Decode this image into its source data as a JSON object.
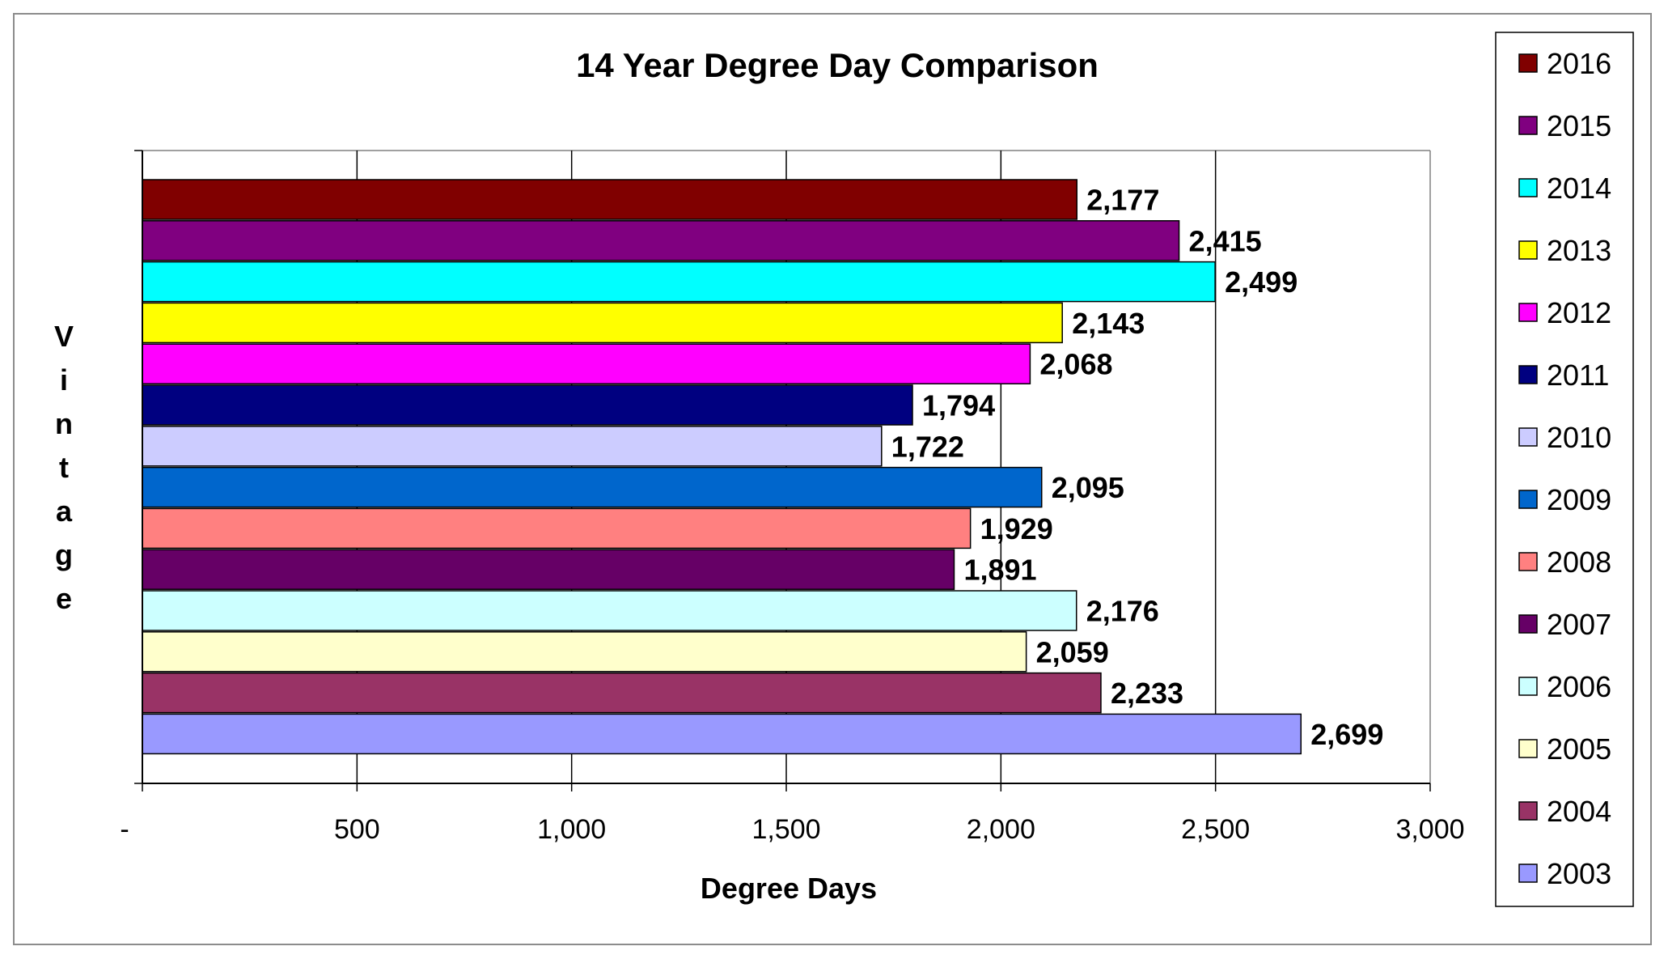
{
  "chart_data": {
    "type": "bar",
    "orientation": "horizontal",
    "title": "14 Year Degree Day Comparison",
    "xlabel": "Degree Days",
    "ylabel": "Vintage",
    "xlim": [
      0,
      3000
    ],
    "x_ticks": [
      0,
      500,
      1000,
      1500,
      2000,
      2500,
      3000
    ],
    "x_tick_labels": [
      "-",
      "500",
      "1,000",
      "1,500",
      "2,000",
      "2,500",
      "3,000"
    ],
    "grid": "vertical major gridlines",
    "legend_position": "right",
    "series": [
      {
        "name": "2016",
        "value": 2177,
        "label": "2,177",
        "color": "#800000"
      },
      {
        "name": "2015",
        "value": 2415,
        "label": "2,415",
        "color": "#800080"
      },
      {
        "name": "2014",
        "value": 2499,
        "label": "2,499",
        "color": "#00FFFF"
      },
      {
        "name": "2013",
        "value": 2143,
        "label": "2,143",
        "color": "#FFFF00"
      },
      {
        "name": "2012",
        "value": 2068,
        "label": "2,068",
        "color": "#FF00FF"
      },
      {
        "name": "2011",
        "value": 1794,
        "label": "1,794",
        "color": "#000080"
      },
      {
        "name": "2010",
        "value": 1722,
        "label": "1,722",
        "color": "#CCCCFF"
      },
      {
        "name": "2009",
        "value": 2095,
        "label": "2,095",
        "color": "#0066CC"
      },
      {
        "name": "2008",
        "value": 1929,
        "label": "1,929",
        "color": "#FF8080"
      },
      {
        "name": "2007",
        "value": 1891,
        "label": "1,891",
        "color": "#660066"
      },
      {
        "name": "2006",
        "value": 2176,
        "label": "2,176",
        "color": "#CCFFFF"
      },
      {
        "name": "2005",
        "value": 2059,
        "label": "2,059",
        "color": "#FFFFCC"
      },
      {
        "name": "2004",
        "value": 2233,
        "label": "2,233",
        "color": "#993366"
      },
      {
        "name": "2003",
        "value": 2699,
        "label": "2,699",
        "color": "#9999FF"
      }
    ]
  }
}
